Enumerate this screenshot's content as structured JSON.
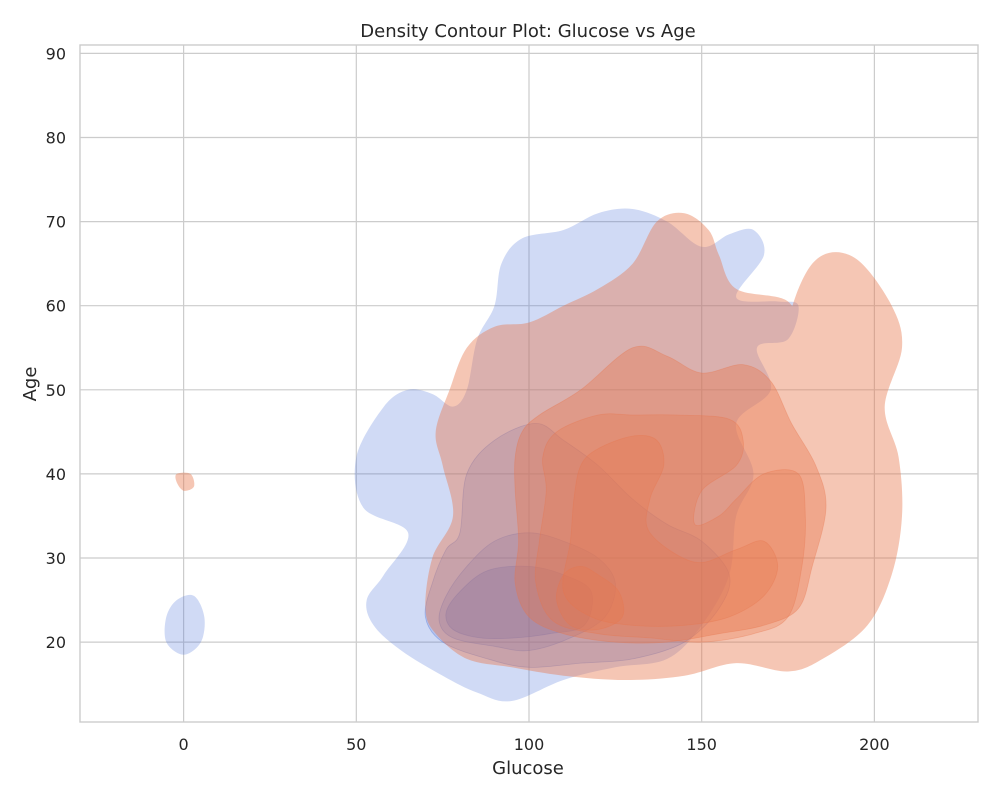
{
  "chart_data": {
    "type": "density-contour",
    "title": "Density Contour Plot: Glucose vs Age",
    "xlabel": "Glucose",
    "ylabel": "Age",
    "xlim": [
      -30,
      230
    ],
    "ylim": [
      10.5,
      91
    ],
    "xticks": [
      0,
      50,
      100,
      150,
      200
    ],
    "yticks": [
      20,
      30,
      40,
      50,
      60,
      70,
      80,
      90
    ],
    "grid": true,
    "legend": "none",
    "series": [
      {
        "color": "#4b6fd8",
        "levels": [
          {
            "opacity": 0.26,
            "regions": [
              [
                [
                  130,
                  71.5
                ],
                [
                  140,
                  70
                ],
                [
                  150,
                  67
                ],
                [
                  158,
                  68.5
                ],
                [
                  165,
                  69
                ],
                [
                  168,
                  66
                ],
                [
                  160,
                  61
                ],
                [
                  172,
                  60.5
                ],
                [
                  178,
                  60
                ],
                [
                  175,
                  56
                ],
                [
                  166,
                  55
                ],
                [
                  170,
                  50
                ],
                [
                  160,
                  46
                ],
                [
                  165,
                  40
                ],
                [
                  160,
                  35
                ],
                [
                  158,
                  28
                ],
                [
                  150,
                  22
                ],
                [
                  140,
                  18
                ],
                [
                  125,
                  17
                ],
                [
                  110,
                  15.5
                ],
                [
                  95,
                  13
                ],
                [
                  85,
                  14
                ],
                [
                  75,
                  16
                ],
                [
                  63,
                  19
                ],
                [
                  55,
                  22
                ],
                [
                  53,
                  25
                ],
                [
                  58,
                  28
                ],
                [
                  65,
                  33
                ],
                [
                  52,
                  36
                ],
                [
                  50,
                  42
                ],
                [
                  58,
                  48
                ],
                [
                  65,
                  50
                ],
                [
                  72,
                  49.5
                ],
                [
                  78,
                  48
                ],
                [
                  82,
                  50
                ],
                [
                  85,
                  56
                ],
                [
                  90,
                  60
                ],
                [
                  92,
                  65
                ],
                [
                  98,
                  68
                ],
                [
                  110,
                  69
                ],
                [
                  120,
                  71
                ]
              ],
              [
                [
                  -5,
                  23
                ],
                [
                  -2,
                  25
                ],
                [
                  3,
                  25.5
                ],
                [
                  6,
                  23
                ],
                [
                  5,
                  20
                ],
                [
                  0,
                  18.5
                ],
                [
                  -5,
                  20
                ]
              ]
            ]
          },
          {
            "opacity": 0.22,
            "regions": [
              [
                [
                  102,
                  46
                ],
                [
                  110,
                  44
                ],
                [
                  120,
                  41
                ],
                [
                  130,
                  37
                ],
                [
                  140,
                  34
                ],
                [
                  150,
                  32
                ],
                [
                  158,
                  28
                ],
                [
                  155,
                  24
                ],
                [
                  145,
                  20
                ],
                [
                  130,
                  18
                ],
                [
                  115,
                  17.5
                ],
                [
                  100,
                  17
                ],
                [
                  88,
                  18
                ],
                [
                  75,
                  20
                ],
                [
                  70,
                  23
                ],
                [
                  72,
                  27
                ],
                [
                  76,
                  31
                ],
                [
                  80,
                  33
                ],
                [
                  82,
                  40
                ],
                [
                  90,
                  44
                ]
              ]
            ]
          },
          {
            "opacity": 0.24,
            "regions": [
              [
                [
                  100,
                  33
                ],
                [
                  110,
                  32
                ],
                [
                  120,
                  30
                ],
                [
                  125,
                  27
                ],
                [
                  122,
                  23
                ],
                [
                  112,
                  20.5
                ],
                [
                  100,
                  19
                ],
                [
                  90,
                  19.5
                ],
                [
                  78,
                  20.5
                ],
                [
                  74,
                  22.5
                ],
                [
                  76,
                  25.5
                ],
                [
                  82,
                  29
                ],
                [
                  90,
                  32
                ]
              ]
            ]
          },
          {
            "opacity": 0.3,
            "regions": [
              [
                [
                  100,
                  29
                ],
                [
                  110,
                  28
                ],
                [
                  118,
                  26
                ],
                [
                  116,
                  22
                ],
                [
                  106,
                  21
                ],
                [
                  96,
                  20.5
                ],
                [
                  86,
                  20.5
                ],
                [
                  78,
                  21.5
                ],
                [
                  76,
                  23.5
                ],
                [
                  80,
                  26
                ],
                [
                  88,
                  28.5
                ]
              ]
            ]
          }
        ]
      },
      {
        "color": "#e8764c",
        "levels": [
          {
            "opacity": 0.42,
            "regions": [
              [
                [
                  145,
                  71
                ],
                [
                  152,
                  69
                ],
                [
                  155,
                  66
                ],
                [
                  160,
                  62
                ],
                [
                  175,
                  60.5
                ],
                [
                  178,
                  56
                ],
                [
                  172,
                  53
                ],
                [
                  178,
                  62
                ],
                [
                  185,
                  66
                ],
                [
                  195,
                  65.5
                ],
                [
                  205,
                  60
                ],
                [
                  208,
                  55
                ],
                [
                  203,
                  48
                ],
                [
                  207,
                  42
                ],
                [
                  208,
                  35
                ],
                [
                  205,
                  28
                ],
                [
                  198,
                  22
                ],
                [
                  185,
                  18
                ],
                [
                  175,
                  16.5
                ],
                [
                  160,
                  17.5
                ],
                [
                  145,
                  16
                ],
                [
                  128,
                  15.5
                ],
                [
                  110,
                  16
                ],
                [
                  95,
                  17
                ],
                [
                  82,
                  18
                ],
                [
                  73,
                  21
                ],
                [
                  70,
                  24
                ],
                [
                  72,
                  30
                ],
                [
                  78,
                  35
                ],
                [
                  75,
                  41
                ],
                [
                  73,
                  45
                ],
                [
                  77,
                  50
                ],
                [
                  82,
                  55
                ],
                [
                  90,
                  57.5
                ],
                [
                  100,
                  58
                ],
                [
                  110,
                  60
                ],
                [
                  120,
                  62
                ],
                [
                  130,
                  65
                ],
                [
                  137,
                  70
                ]
              ],
              [
                [
                  -2,
                  40
                ],
                [
                  2,
                  40
                ],
                [
                  3,
                  38.5
                ],
                [
                  0,
                  38
                ],
                [
                  -2,
                  39
                ]
              ]
            ]
          },
          {
            "opacity": 0.38,
            "regions": [
              [
                [
                  130,
                  55
                ],
                [
                  140,
                  54
                ],
                [
                  150,
                  52
                ],
                [
                  162,
                  53
                ],
                [
                  170,
                  51
                ],
                [
                  176,
                  46
                ],
                [
                  183,
                  41
                ],
                [
                  186,
                  36
                ],
                [
                  182,
                  29
                ],
                [
                  178,
                  24
                ],
                [
                  168,
                  22
                ],
                [
                  155,
                  21
                ],
                [
                  140,
                  20
                ],
                [
                  125,
                  20
                ],
                [
                  110,
                  21
                ],
                [
                  100,
                  23
                ],
                [
                  96,
                  27
                ],
                [
                  97,
                  32
                ],
                [
                  96,
                  38
                ],
                [
                  96,
                  42
                ],
                [
                  98,
                  45
                ],
                [
                  103,
                  47
                ],
                [
                  115,
                  50
                ]
              ]
            ]
          },
          {
            "opacity": 0.3,
            "regions": [
              [
                [
                  120,
                  47
                ],
                [
                  130,
                  47
                ],
                [
                  143,
                  47
                ],
                [
                  158,
                  46.5
                ],
                [
                  162,
                  44
                ],
                [
                  160,
                  41
                ],
                [
                  150,
                  38
                ],
                [
                  148,
                  34
                ],
                [
                  155,
                  35
                ],
                [
                  160,
                  37
                ],
                [
                  168,
                  40
                ],
                [
                  178,
                  40
                ],
                [
                  180,
                  35
                ],
                [
                  179,
                  29
                ],
                [
                  175,
                  23
                ],
                [
                  165,
                  21
                ],
                [
                  150,
                  20
                ],
                [
                  135,
                  20.5
                ],
                [
                  120,
                  21
                ],
                [
                  107,
                  22.5
                ],
                [
                  102,
                  27
                ],
                [
                  103,
                  32
                ],
                [
                  105,
                  38
                ],
                [
                  104,
                  42
                ],
                [
                  108,
                  45
                ]
              ]
            ]
          },
          {
            "opacity": 0.3,
            "regions": [
              [
                [
                  120,
                  43
                ],
                [
                  130,
                  44.5
                ],
                [
                  137,
                  44
                ],
                [
                  139,
                  41
                ],
                [
                  135,
                  37
                ],
                [
                  135,
                  33
                ],
                [
                  148,
                  29.5
                ],
                [
                  160,
                  31
                ],
                [
                  168,
                  32
                ],
                [
                  172,
                  29
                ],
                [
                  168,
                  25.5
                ],
                [
                  158,
                  23
                ],
                [
                  145,
                  22
                ],
                [
                  130,
                  22
                ],
                [
                  118,
                  23
                ],
                [
                  110,
                  26
                ],
                [
                  112,
                  32
                ],
                [
                  113,
                  37
                ],
                [
                  115,
                  41
                ]
              ]
            ]
          },
          {
            "opacity": 0.32,
            "regions": [
              [
                [
                  115,
                  29
                ],
                [
                  120,
                  28
                ],
                [
                  126,
                  26
                ],
                [
                  127,
                  23
                ],
                [
                  120,
                  21.5
                ],
                [
                  112,
                  22
                ],
                [
                  108,
                  25
                ],
                [
                  110,
                  28
                ]
              ]
            ]
          }
        ]
      }
    ]
  }
}
